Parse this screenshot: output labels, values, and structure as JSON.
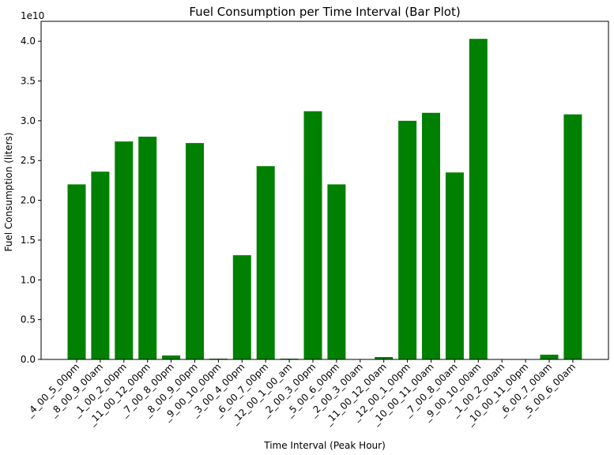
{
  "chart_data": {
    "type": "bar",
    "title": "Fuel Consumption per Time Interval (Bar Plot)",
    "xlabel": "Time Interval (Peak Hour)",
    "ylabel": "Fuel Consumption (liters)",
    "y_multiplier": "1e10",
    "ylim": [
      0,
      4.25
    ],
    "yticks": [
      "0.0",
      "0.5",
      "1.0",
      "1.5",
      "2.0",
      "2.5",
      "3.0",
      "3.5",
      "4.0"
    ],
    "ytick_values": [
      0,
      0.5,
      1.0,
      1.5,
      2.0,
      2.5,
      3.0,
      3.5,
      4.0
    ],
    "bar_color": "#008000",
    "grid": false,
    "categories": [
      "_4_00_5_00pm",
      "_8_00_9_00am",
      "_1_00_2_00pm",
      "_11_00_12_00pm",
      "_7_00_8_00pm",
      "_8_00_9_00pm",
      "_9_00_10_00pm",
      "_3_00_4_00pm",
      "_6_00_7_00pm",
      "_12_00_1_00_am",
      "_2_00_3_00pm",
      "_5_00_6_00pm",
      "_2_00_3_00am",
      "_11_00_12_00am",
      "_12_00_1_00pm",
      "_10_00_11_00am",
      "_7_00_8_00am",
      "_9_00_10_00am",
      "_1_00_2_00am",
      "_10_00_11_00pm",
      "_6_00_7_00am",
      "_5_00_6_00am"
    ],
    "values": [
      2.2,
      2.36,
      2.74,
      2.8,
      0.05,
      2.72,
      0.01,
      1.31,
      2.43,
      0.01,
      3.12,
      2.2,
      0.0,
      0.03,
      3.0,
      3.1,
      2.35,
      4.03,
      0.0,
      0.0,
      0.06,
      3.08
    ]
  }
}
